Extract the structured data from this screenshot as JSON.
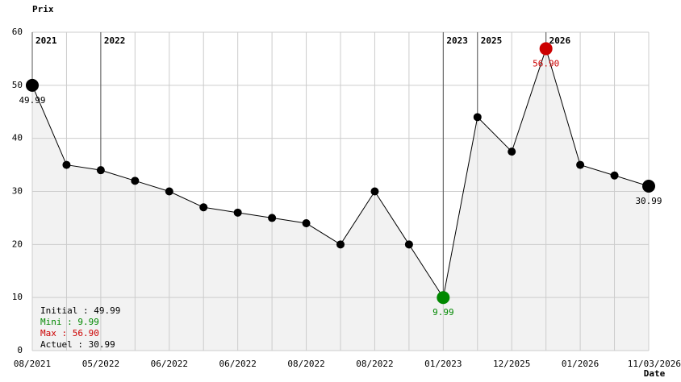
{
  "chart_data": {
    "type": "line",
    "y_axis_label": "Prix",
    "x_axis_label": "Date",
    "categories": [
      "08/2021",
      null,
      "05/2022",
      null,
      "06/2022",
      null,
      "06/2022",
      null,
      "08/2022",
      null,
      "08/2022",
      null,
      "01/2023",
      null,
      "12/2025",
      null,
      "01/2026",
      null,
      "11/03/2026"
    ],
    "values": [
      49.99,
      35,
      34,
      32,
      30,
      27,
      26,
      25,
      24,
      20,
      30,
      20,
      9.99,
      44,
      37.5,
      56.9,
      35,
      33,
      30.99
    ],
    "value_labels": [
      "49.99",
      null,
      null,
      null,
      null,
      null,
      null,
      null,
      null,
      null,
      null,
      null,
      "9.99",
      null,
      null,
      "56.90",
      null,
      null,
      "30.99"
    ],
    "point_colors": [
      "#000000",
      "#000000",
      "#000000",
      "#000000",
      "#000000",
      "#000000",
      "#000000",
      "#000000",
      "#000000",
      "#000000",
      "#000000",
      "#000000",
      "#008800",
      "#000000",
      "#000000",
      "#cc0000",
      "#000000",
      "#000000",
      "#000000"
    ],
    "label_colors": [
      "#000000",
      null,
      null,
      null,
      null,
      null,
      null,
      null,
      null,
      null,
      null,
      null,
      "#008800",
      null,
      null,
      "#cc0000",
      null,
      null,
      "#000000"
    ],
    "line_color": "#000000",
    "area_color": "#f2f2f2",
    "ylim": [
      0,
      60
    ],
    "yticks": [
      0,
      10,
      20,
      30,
      40,
      50,
      60
    ],
    "grid": true,
    "year_markers": [
      {
        "index": 0,
        "label": "2021"
      },
      {
        "index": 2,
        "label": "2022"
      },
      {
        "index": 12,
        "label": "2023"
      },
      {
        "index": 13,
        "label": "2025"
      },
      {
        "index": 15,
        "label": "2026"
      }
    ],
    "summary": [
      {
        "text": "Initial : 49.99",
        "color": "#000000"
      },
      {
        "text": "Mini : 9.99",
        "color": "#008800"
      },
      {
        "text": "Max : 56.90",
        "color": "#cc0000"
      },
      {
        "text": "Actuel : 30.99",
        "color": "#000000"
      }
    ]
  }
}
